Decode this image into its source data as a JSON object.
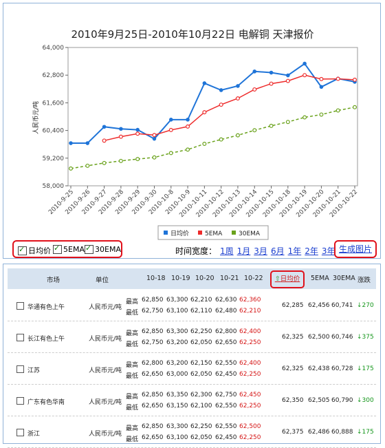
{
  "title": "2010年9月25日-2010年10月22日 电解铜 天津报价",
  "chart_data": {
    "type": "line",
    "title": "2010年9月25日-2010年10月22日 电解铜 天津报价",
    "ylabel": "人民币元/吨",
    "xlabel": "",
    "ylim": [
      58000,
      64000
    ],
    "y_ticks": [
      "64,000",
      "62,800",
      "61,600",
      "60,400",
      "59,200",
      "58,000"
    ],
    "categories": [
      "2010-9-25",
      "2010-9-26",
      "2010-9-27",
      "2010-9-28",
      "2010-9-29",
      "2010-9-30",
      "2010-10-8",
      "2010-10-9",
      "2010-10-11",
      "2010-10-12",
      "2010-10-13",
      "2010-10-14",
      "2010-10-15",
      "2010-10-18",
      "2010-10-19",
      "2010-10-20",
      "2010-10-21",
      "2010-10-22"
    ],
    "series": [
      {
        "name": "日均价",
        "color": "#1f74d8",
        "values": [
          59850,
          59850,
          60560,
          60470,
          60430,
          60040,
          60870,
          60870,
          62450,
          62150,
          62330,
          62960,
          62910,
          62790,
          63300,
          62290,
          62650,
          62510
        ]
      },
      {
        "name": "5EMA",
        "color": "#ee2b2b",
        "values": [
          null,
          null,
          59960,
          60130,
          60260,
          60200,
          60420,
          60570,
          61190,
          61520,
          61790,
          62180,
          62430,
          62550,
          62800,
          62630,
          62640,
          62600
        ]
      },
      {
        "name": "30EMA",
        "color": "#6aa21c",
        "values": [
          58750,
          58870,
          58990,
          59080,
          59160,
          59230,
          59420,
          59570,
          59820,
          60010,
          60190,
          60410,
          60600,
          60770,
          60970,
          61090,
          61270,
          61410
        ]
      }
    ],
    "legend_position": "bottom",
    "grid": false
  },
  "legend": {
    "items": [
      "日均价",
      "5EMA",
      "30EMA"
    ],
    "colors": [
      "#1f74d8",
      "#ee2b2b",
      "#6aa21c"
    ]
  },
  "controls": {
    "checkboxes": [
      "日均价",
      "5EMA",
      "30EMA"
    ],
    "time_range_label": "时间宽度：",
    "time_links": [
      "1周",
      "1月",
      "3月",
      "6月",
      "1年",
      "2年",
      "3年"
    ],
    "generate_label": "生成图片"
  },
  "table": {
    "headers": {
      "market": "市场",
      "unit": "单位",
      "dates": [
        "10-18",
        "10-19",
        "10-20",
        "10-21",
        "10-22"
      ],
      "avg": "日均价",
      "ema5": "5EMA",
      "ema30": "30EMA",
      "change": "涨跌"
    },
    "rows": [
      {
        "market": "华通有色上午",
        "unit": "人民币元/吨",
        "high_label": "最高",
        "low_label": "最低",
        "high": [
          "62,850",
          "63,300",
          "62,210",
          "62,630",
          "62,360"
        ],
        "low": [
          "62,750",
          "63,100",
          "62,110",
          "62,480",
          "62,210"
        ],
        "avg": "62,285",
        "ema5": "62,456",
        "ema30": "60,741",
        "change": "↓270"
      },
      {
        "market": "长江有色上午",
        "unit": "人民币元/吨",
        "high_label": "最高",
        "low_label": "最低",
        "high": [
          "62,850",
          "63,300",
          "62,250",
          "62,800",
          "62,400"
        ],
        "low": [
          "62,750",
          "63,200",
          "62,050",
          "62,650",
          "62,250"
        ],
        "avg": "62,325",
        "ema5": "62,500",
        "ema30": "60,746",
        "change": "↓375"
      },
      {
        "market": "江苏",
        "unit": "人民币元/吨",
        "high_label": "最高",
        "low_label": "最低",
        "high": [
          "62,800",
          "63,200",
          "62,150",
          "62,550",
          "62,400"
        ],
        "low": [
          "62,650",
          "63,000",
          "62,050",
          "62,450",
          "62,250"
        ],
        "avg": "62,325",
        "ema5": "62,438",
        "ema30": "60,728",
        "change": "↓175"
      },
      {
        "market": "广东有色华南",
        "unit": "人民币元/吨",
        "high_label": "最高",
        "low_label": "最低",
        "high": [
          "62,850",
          "63,350",
          "62,300",
          "62,750",
          "62,450"
        ],
        "low": [
          "62,650",
          "63,150",
          "62,100",
          "62,550",
          "62,250"
        ],
        "avg": "62,350",
        "ema5": "62,505",
        "ema30": "60,790",
        "change": "↓300"
      },
      {
        "market": "浙江",
        "unit": "人民币元/吨",
        "high_label": "最高",
        "low_label": "最低",
        "high": [
          "62,850",
          "63,300",
          "62,250",
          "62,550",
          "62,500"
        ],
        "low": [
          "62,650",
          "63,100",
          "62,050",
          "62,450",
          "62,250"
        ],
        "avg": "62,375",
        "ema5": "62,486",
        "ema30": "60,888",
        "change": "↓175"
      }
    ]
  }
}
